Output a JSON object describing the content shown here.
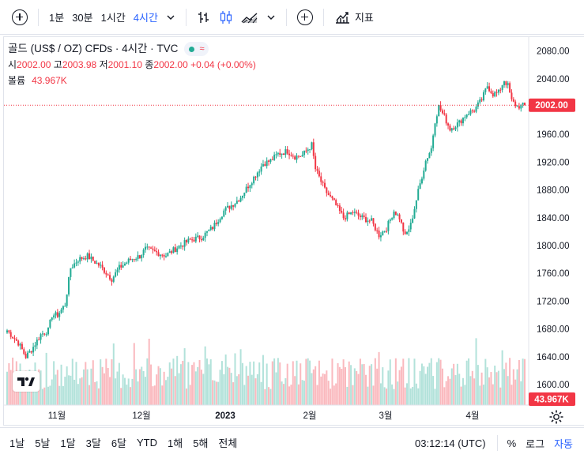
{
  "toolbar": {
    "intervals": [
      "1분",
      "30분",
      "1시간",
      "4시간"
    ],
    "active_interval": "4시간",
    "indicators_label": "지표"
  },
  "legend": {
    "title": "골드 (US$ / OZ) CFDs · 4시간 · TVC",
    "open_label": "시",
    "open": "2002.00",
    "high_label": "고",
    "high": "2003.98",
    "low_label": "저",
    "low": "2001.10",
    "close_label": "종",
    "close": "2002.00",
    "change": "+0.04 (+0.00%)",
    "volume_label": "볼륨",
    "volume": "43.967K"
  },
  "colors": {
    "up": "#22ab94",
    "down": "#f23645",
    "accent": "#2962ff"
  },
  "price_axis": {
    "ticks": [
      "2080.00",
      "2040.00",
      "2000.00",
      "1960.00",
      "1920.00",
      "1880.00",
      "1840.00",
      "1800.00",
      "1760.00",
      "1720.00",
      "1680.00",
      "1640.00",
      "1600.00"
    ],
    "last_price": "2002.00",
    "volume_badge": "43.967K"
  },
  "time_axis": {
    "labels": [
      "11월",
      "12월",
      "2023",
      "2월",
      "3월",
      "4월"
    ]
  },
  "bottom_bar": {
    "ranges": [
      "1날",
      "5날",
      "1달",
      "3달",
      "6달",
      "YTD",
      "1해",
      "5해",
      "전체"
    ],
    "time": "03:12:14 (UTC)",
    "percent": "%",
    "log": "로그",
    "auto": "자동"
  },
  "chart_data": {
    "type": "candlestick",
    "title": "골드 (US$ / OZ) CFDs · 4시간 · TVC",
    "ylim": [
      1585,
      2092
    ],
    "x_labels": [
      "11월",
      "12월",
      "2023",
      "2월",
      "3월",
      "4월"
    ],
    "close_path": [
      [
        0,
        1678
      ],
      [
        6,
        1660
      ],
      [
        10,
        1640
      ],
      [
        13,
        1650
      ],
      [
        18,
        1672
      ],
      [
        22,
        1678
      ],
      [
        24,
        1700
      ],
      [
        27,
        1700
      ],
      [
        31,
        1715
      ],
      [
        34,
        1768
      ],
      [
        38,
        1780
      ],
      [
        43,
        1785
      ],
      [
        50,
        1770
      ],
      [
        56,
        1752
      ],
      [
        60,
        1768
      ],
      [
        66,
        1780
      ],
      [
        71,
        1785
      ],
      [
        74,
        1795
      ],
      [
        80,
        1790
      ],
      [
        85,
        1786
      ],
      [
        92,
        1799
      ],
      [
        98,
        1808
      ],
      [
        104,
        1812
      ],
      [
        110,
        1826
      ],
      [
        116,
        1850
      ],
      [
        122,
        1862
      ],
      [
        125,
        1870
      ],
      [
        130,
        1890
      ],
      [
        137,
        1918
      ],
      [
        141,
        1922
      ],
      [
        145,
        1932
      ],
      [
        150,
        1936
      ],
      [
        154,
        1928
      ],
      [
        158,
        1930
      ],
      [
        163,
        1945
      ],
      [
        165,
        1910
      ],
      [
        170,
        1880
      ],
      [
        175,
        1862
      ],
      [
        180,
        1840
      ],
      [
        185,
        1848
      ],
      [
        190,
        1840
      ],
      [
        195,
        1835
      ],
      [
        199,
        1815
      ],
      [
        203,
        1825
      ],
      [
        207,
        1850
      ],
      [
        210,
        1840
      ],
      [
        213,
        1813
      ],
      [
        216,
        1830
      ],
      [
        220,
        1878
      ],
      [
        224,
        1922
      ],
      [
        227,
        1940
      ],
      [
        229,
        1980
      ],
      [
        231,
        2000
      ],
      [
        234,
        1985
      ],
      [
        237,
        1968
      ],
      [
        242,
        1977
      ],
      [
        246,
        1990
      ],
      [
        250,
        1995
      ],
      [
        254,
        2010
      ],
      [
        257,
        2030
      ],
      [
        260,
        2018
      ],
      [
        263,
        2020
      ],
      [
        266,
        2038
      ],
      [
        268,
        2030
      ],
      [
        270,
        2008
      ],
      [
        273,
        2000
      ],
      [
        277,
        2002
      ]
    ],
    "volume_range": [
      0,
      55
    ]
  }
}
